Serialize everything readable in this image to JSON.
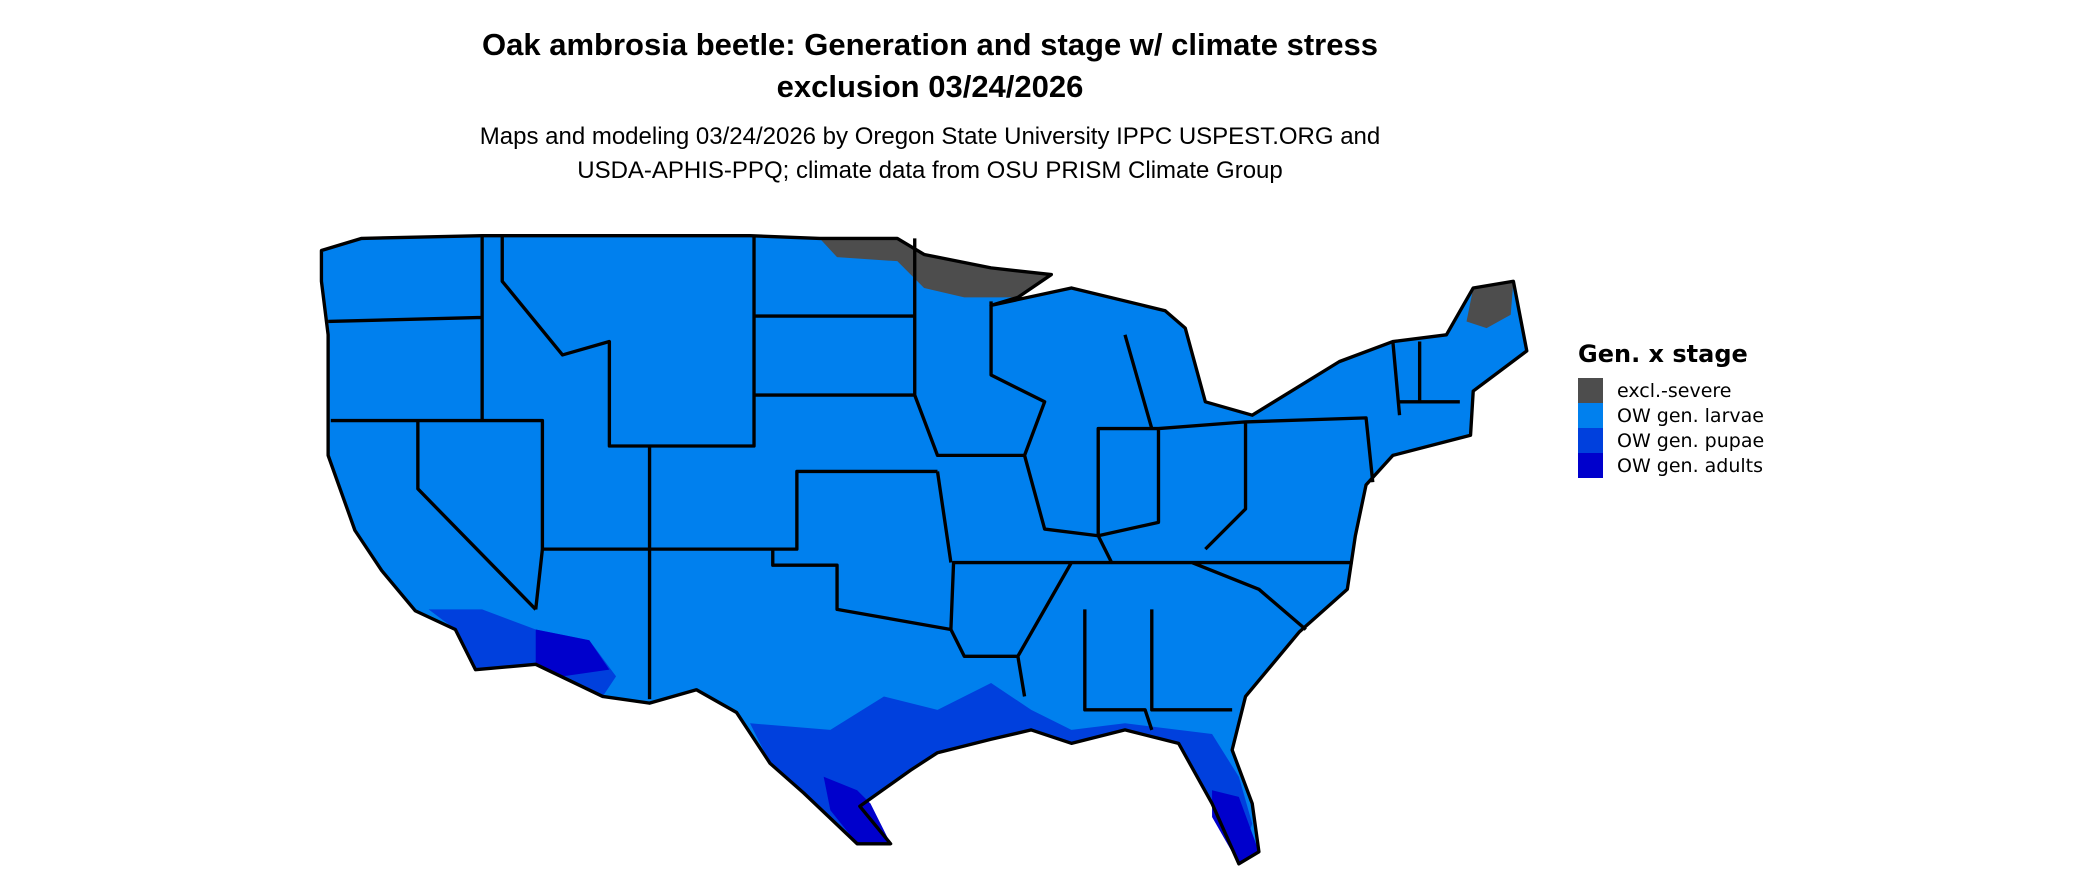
{
  "title": {
    "line1": "Oak ambrosia beetle: Generation and stage w/ climate stress",
    "line2": "exclusion 03/24/2026"
  },
  "subtitle": {
    "line1": "Maps and modeling 03/24/2026 by Oregon State University IPPC USPEST.ORG and",
    "line2": "USDA-APHIS-PPQ; climate data from OSU PRISM Climate Group"
  },
  "legend": {
    "title": "Gen. x stage",
    "items": [
      {
        "label": "excl.-severe",
        "color": "#4d4d4d"
      },
      {
        "label": "OW gen. larvae",
        "color": "#0080ee"
      },
      {
        "label": "OW gen. pupae",
        "color": "#0040dd"
      },
      {
        "label": "OW gen. adults",
        "color": "#0000cc"
      }
    ]
  }
}
